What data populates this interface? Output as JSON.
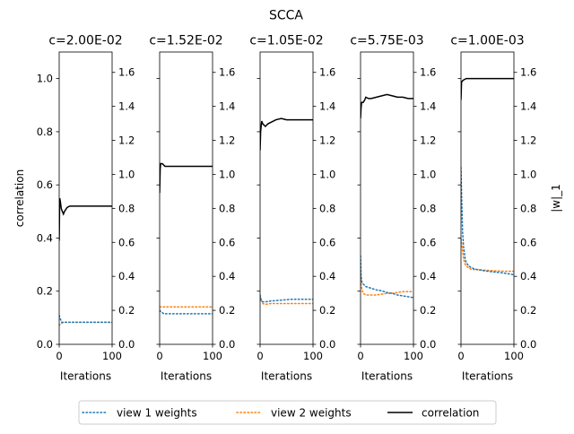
{
  "chart_data": {
    "type": "line",
    "title": "SCCA",
    "ylabel_left": "correlation",
    "ylabel_right": "|w|_1",
    "xlabel": "Iterations",
    "xlim": [
      0,
      100
    ],
    "ylim_left": [
      0,
      1.1
    ],
    "ylim_right": [
      0,
      1.72
    ],
    "x_ticks": [
      "0",
      "100"
    ],
    "y_ticks_left": [
      "0.0",
      "0.2",
      "0.4",
      "0.6",
      "0.8",
      "1.0"
    ],
    "y_ticks_right": [
      "0.0",
      "0.2",
      "0.4",
      "0.6",
      "0.8",
      "1.0",
      "1.2",
      "1.4",
      "1.6"
    ],
    "legend": {
      "placement": "bottom-center",
      "entries": [
        {
          "label": "view 1 weights",
          "color": "#1f77b4",
          "style": "dotted"
        },
        {
          "label": "view 2 weights",
          "color": "#ff7f0e",
          "style": "dotted"
        },
        {
          "label": "correlation",
          "color": "#000000",
          "style": "solid"
        }
      ]
    },
    "panels": [
      {
        "title": "c=2.00E-02",
        "correlation": {
          "x": [
            0,
            1,
            2,
            4,
            6,
            8,
            10,
            15,
            20,
            30,
            50,
            100
          ],
          "y": [
            0.39,
            0.55,
            0.54,
            0.51,
            0.5,
            0.49,
            0.5,
            0.515,
            0.52,
            0.52,
            0.52,
            0.52
          ]
        },
        "view1_weights": {
          "x": [
            0,
            2,
            5,
            10,
            20,
            50,
            100
          ],
          "y": [
            0.17,
            0.15,
            0.13,
            0.13,
            0.13,
            0.13,
            0.13
          ]
        },
        "view2_weights": {
          "x": [
            0,
            2,
            5,
            10,
            20,
            50,
            100
          ],
          "y": [
            0.11,
            0.12,
            0.125,
            0.13,
            0.13,
            0.13,
            0.13
          ]
        }
      },
      {
        "title": "c=1.52E-02",
        "correlation": {
          "x": [
            0,
            1,
            2,
            5,
            10,
            20,
            50,
            100
          ],
          "y": [
            0.57,
            0.66,
            0.68,
            0.68,
            0.67,
            0.67,
            0.67,
            0.67
          ]
        },
        "view1_weights": {
          "x": [
            0,
            3,
            8,
            20,
            50,
            100
          ],
          "y": [
            0.2,
            0.19,
            0.18,
            0.18,
            0.18,
            0.18
          ]
        },
        "view2_weights": {
          "x": [
            0,
            3,
            8,
            20,
            50,
            100
          ],
          "y": [
            0.22,
            0.22,
            0.22,
            0.22,
            0.22,
            0.22
          ]
        }
      },
      {
        "title": "c=1.05E-02",
        "correlation": {
          "x": [
            0,
            1,
            3,
            5,
            10,
            15,
            20,
            30,
            40,
            50,
            60,
            80,
            100
          ],
          "y": [
            0.73,
            0.8,
            0.84,
            0.83,
            0.82,
            0.83,
            0.835,
            0.845,
            0.85,
            0.845,
            0.845,
            0.845,
            0.845
          ]
        },
        "view1_weights": {
          "x": [
            0,
            2,
            5,
            10,
            20,
            40,
            60,
            80,
            100
          ],
          "y": [
            0.29,
            0.26,
            0.25,
            0.25,
            0.255,
            0.26,
            0.265,
            0.265,
            0.265
          ]
        },
        "view2_weights": {
          "x": [
            0,
            2,
            5,
            10,
            20,
            40,
            60,
            80,
            100
          ],
          "y": [
            0.28,
            0.26,
            0.24,
            0.235,
            0.24,
            0.24,
            0.24,
            0.24,
            0.24
          ]
        }
      },
      {
        "title": "c=5.75E-03",
        "correlation": {
          "x": [
            0,
            1,
            2,
            5,
            8,
            10,
            15,
            20,
            30,
            40,
            50,
            60,
            70,
            80,
            90,
            100
          ],
          "y": [
            0.85,
            0.89,
            0.91,
            0.91,
            0.92,
            0.93,
            0.925,
            0.925,
            0.93,
            0.935,
            0.94,
            0.935,
            0.93,
            0.93,
            0.925,
            0.925
          ]
        },
        "view1_weights": {
          "x": [
            0,
            1,
            3,
            5,
            10,
            20,
            30,
            40,
            50,
            60,
            70,
            80,
            90,
            100
          ],
          "y": [
            0.52,
            0.4,
            0.36,
            0.355,
            0.34,
            0.33,
            0.32,
            0.315,
            0.305,
            0.3,
            0.29,
            0.285,
            0.28,
            0.275
          ]
        },
        "view2_weights": {
          "x": [
            0,
            1,
            3,
            5,
            10,
            20,
            30,
            40,
            50,
            60,
            70,
            80,
            90,
            100
          ],
          "y": [
            0.42,
            0.35,
            0.32,
            0.3,
            0.29,
            0.29,
            0.29,
            0.295,
            0.3,
            0.3,
            0.305,
            0.31,
            0.31,
            0.31
          ]
        }
      },
      {
        "title": "c=1.00E-03",
        "correlation": {
          "x": [
            0,
            1,
            2,
            5,
            10,
            20,
            50,
            100
          ],
          "y": [
            0.92,
            0.985,
            0.99,
            0.995,
            1.0,
            1.0,
            1.0,
            1.0
          ]
        },
        "view1_weights": {
          "x": [
            0,
            1,
            3,
            5,
            8,
            10,
            15,
            20,
            30,
            50,
            80,
            100
          ],
          "y": [
            1.04,
            0.9,
            0.66,
            0.57,
            0.5,
            0.48,
            0.46,
            0.45,
            0.44,
            0.43,
            0.42,
            0.41
          ]
        },
        "view2_weights": {
          "x": [
            0,
            1,
            3,
            5,
            8,
            10,
            15,
            20,
            30,
            50,
            80,
            100
          ],
          "y": [
            0.62,
            0.6,
            0.55,
            0.5,
            0.47,
            0.46,
            0.45,
            0.44,
            0.44,
            0.435,
            0.43,
            0.43
          ]
        }
      }
    ]
  }
}
